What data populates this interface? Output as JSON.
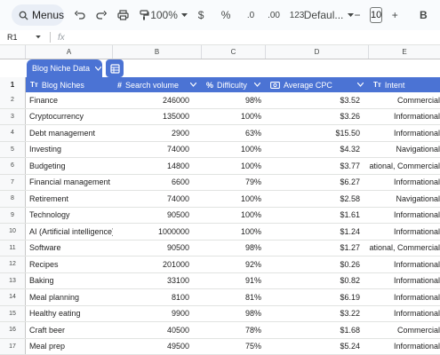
{
  "toolbar": {
    "menus_label": "Menus",
    "zoom": "100%",
    "currency": "$",
    "percent": "%",
    "decrease_decimal": ".0",
    "increase_decimal": ".00",
    "number_format": "123",
    "font_family": "Defaul...",
    "font_size": "10",
    "minus": "−",
    "plus": "+",
    "bold": "B"
  },
  "formula_bar": {
    "cell_ref": "R1",
    "fx": "fx"
  },
  "columns": [
    "A",
    "B",
    "C",
    "D",
    "E"
  ],
  "table": {
    "name": "Blog Niche Data",
    "header_row_num": "1",
    "headers": [
      {
        "icon": "Tт",
        "label": "Blog Niches"
      },
      {
        "icon": "#",
        "label": "Search volume"
      },
      {
        "icon": "%",
        "label": "Difficulty"
      },
      {
        "icon": "$",
        "label": "Average CPC"
      },
      {
        "icon": "Tт",
        "label": "Intent"
      }
    ],
    "rows": [
      {
        "n": "2",
        "niche": "Finance",
        "volume": "246000",
        "difficulty": "98%",
        "cpc": "$3.52",
        "intent": "Commercial"
      },
      {
        "n": "3",
        "niche": "Cryptocurrency",
        "volume": "135000",
        "difficulty": "100%",
        "cpc": "$3.26",
        "intent": "Informational"
      },
      {
        "n": "4",
        "niche": "Debt management",
        "volume": "2900",
        "difficulty": "63%",
        "cpc": "$15.50",
        "intent": "Informational"
      },
      {
        "n": "5",
        "niche": "Investing",
        "volume": "74000",
        "difficulty": "100%",
        "cpc": "$4.32",
        "intent": "Navigational"
      },
      {
        "n": "6",
        "niche": "Budgeting",
        "volume": "14800",
        "difficulty": "100%",
        "cpc": "$3.77",
        "intent": "Informational, Commercial"
      },
      {
        "n": "7",
        "niche": "Financial management",
        "volume": "6600",
        "difficulty": "79%",
        "cpc": "$6.27",
        "intent": "Informational"
      },
      {
        "n": "8",
        "niche": "Retirement",
        "volume": "74000",
        "difficulty": "100%",
        "cpc": "$2.58",
        "intent": "Navigational"
      },
      {
        "n": "9",
        "niche": "Technology",
        "volume": "90500",
        "difficulty": "100%",
        "cpc": "$1.61",
        "intent": "Informational"
      },
      {
        "n": "10",
        "niche": "AI (Artificial intelligence)",
        "volume": "1000000",
        "difficulty": "100%",
        "cpc": "$1.24",
        "intent": "Informational"
      },
      {
        "n": "11",
        "niche": "Software",
        "volume": "90500",
        "difficulty": "98%",
        "cpc": "$1.27",
        "intent": "Informational, Commercial"
      },
      {
        "n": "12",
        "niche": "Recipes",
        "volume": "201000",
        "difficulty": "92%",
        "cpc": "$0.26",
        "intent": "Informational"
      },
      {
        "n": "13",
        "niche": "Baking",
        "volume": "33100",
        "difficulty": "91%",
        "cpc": "$0.82",
        "intent": "Informational"
      },
      {
        "n": "14",
        "niche": "Meal planning",
        "volume": "8100",
        "difficulty": "81%",
        "cpc": "$6.19",
        "intent": "Informational"
      },
      {
        "n": "15",
        "niche": "Healthy eating",
        "volume": "9900",
        "difficulty": "98%",
        "cpc": "$3.22",
        "intent": "Informational"
      },
      {
        "n": "16",
        "niche": "Craft beer",
        "volume": "40500",
        "difficulty": "78%",
        "cpc": "$1.68",
        "intent": "Commercial"
      },
      {
        "n": "17",
        "niche": "Meal prep",
        "volume": "49500",
        "difficulty": "75%",
        "cpc": "$5.24",
        "intent": "Informational"
      }
    ]
  },
  "colors": {
    "table_accent": "#4b73d4",
    "toolbar_bg": "#f9fbfd"
  }
}
